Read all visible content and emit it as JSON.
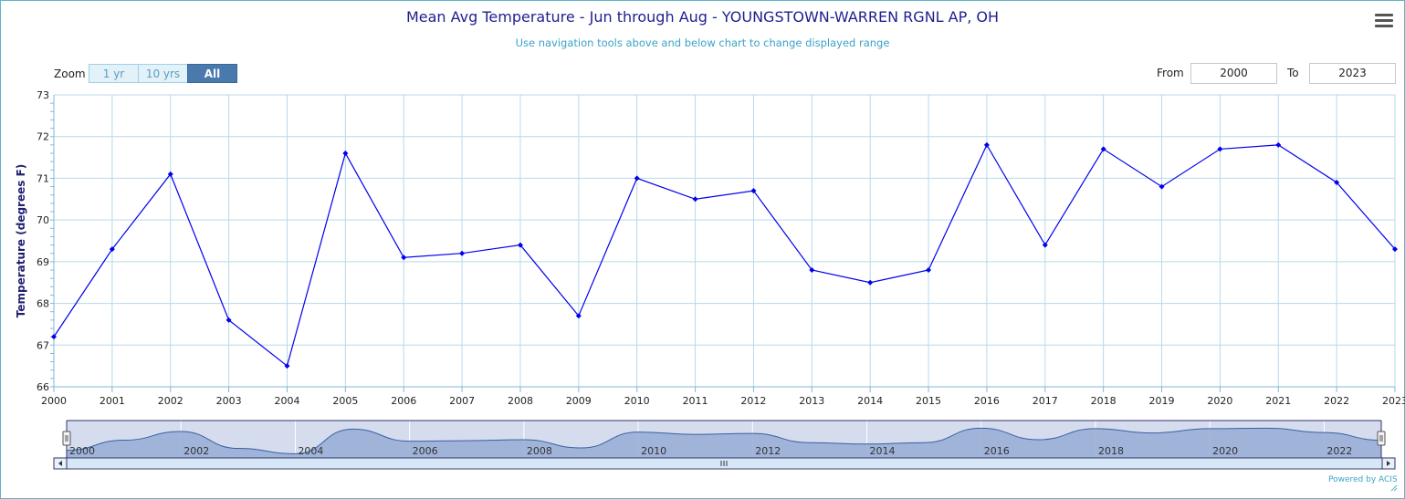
{
  "title": "Mean Avg Temperature - Jun through Aug - YOUNGSTOWN-WARREN RGNL AP, OH",
  "subtitle": "Use navigation tools above and below chart to change displayed range",
  "menu_icon": "hamburger-menu-icon",
  "zoom": {
    "label": "Zoom",
    "buttons": [
      "1 yr",
      "10 yrs",
      "All"
    ],
    "selected": "All"
  },
  "range": {
    "from_label": "From",
    "from_value": "2000",
    "to_label": "To",
    "to_value": "2023"
  },
  "navigator": {
    "labels": [
      "2000",
      "2002",
      "2004",
      "2006",
      "2008",
      "2010",
      "2012",
      "2014",
      "2016",
      "2018",
      "2020",
      "2022"
    ],
    "scroll_icon": "scrollbar-grip-icon"
  },
  "credits": "Powered by ACIS",
  "colors": {
    "series": "#0000ee",
    "grid": "#b7d9ea",
    "navigator_fill": "#9aafd6",
    "accent": "#4a79ad"
  },
  "chart_data": {
    "type": "line",
    "title": "Mean Avg Temperature - Jun through Aug - YOUNGSTOWN-WARREN RGNL AP, OH",
    "xlabel": "",
    "ylabel": "Temperature (degrees F)",
    "x": [
      2000,
      2001,
      2002,
      2003,
      2004,
      2005,
      2006,
      2007,
      2008,
      2009,
      2010,
      2011,
      2012,
      2013,
      2014,
      2015,
      2016,
      2017,
      2018,
      2019,
      2020,
      2021,
      2022,
      2023
    ],
    "values": [
      67.2,
      69.3,
      71.1,
      67.6,
      66.5,
      71.6,
      69.1,
      69.2,
      69.4,
      67.7,
      71.0,
      70.5,
      70.7,
      68.8,
      68.5,
      68.8,
      71.8,
      69.4,
      71.7,
      70.8,
      71.7,
      71.8,
      70.9,
      69.3
    ],
    "xlim": [
      2000,
      2023
    ],
    "ylim": [
      66,
      73
    ],
    "yticks": [
      "66",
      "67",
      "68",
      "69",
      "70",
      "71",
      "72",
      "73"
    ],
    "xticks": [
      "2000",
      "2001",
      "2002",
      "2003",
      "2004",
      "2005",
      "2006",
      "2007",
      "2008",
      "2009",
      "2010",
      "2011",
      "2012",
      "2013",
      "2014",
      "2015",
      "2016",
      "2017",
      "2018",
      "2019",
      "2020",
      "2021",
      "2022",
      "2023"
    ],
    "grid": true,
    "legend": "none"
  }
}
